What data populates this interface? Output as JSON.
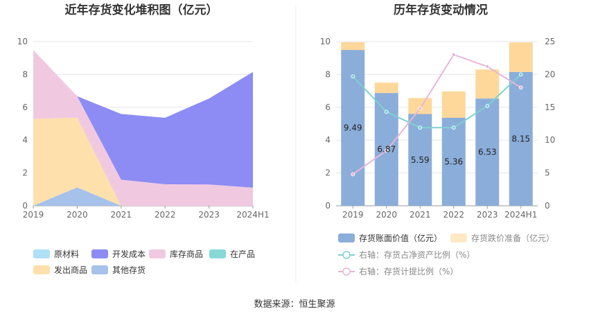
{
  "source": "数据来源：恒生聚源",
  "chart_data": [
    {
      "type": "area",
      "title": "近年存货变化堆积图（亿元）",
      "x": [
        "2019",
        "2020",
        "2021",
        "2022",
        "2023",
        "2024H1"
      ],
      "ylim": [
        0,
        10
      ],
      "yticks": [
        0,
        2,
        4,
        6,
        8,
        10
      ],
      "stacked": true,
      "grid": true,
      "legend_position": "bottom",
      "series": [
        {
          "name": "原材料",
          "color": "#aee0f8",
          "values": [
            0,
            0,
            0,
            0,
            0,
            0
          ]
        },
        {
          "name": "开发成本",
          "color": "#8c8cf4",
          "values": [
            0,
            0,
            4.0,
            4.05,
            5.23,
            7.05
          ]
        },
        {
          "name": "库存商品",
          "color": "#f0c9e0",
          "values": [
            4.2,
            1.3,
            1.59,
            1.31,
            1.3,
            1.1
          ]
        },
        {
          "name": "在产品",
          "color": "#88d8d8",
          "values": [
            0,
            0,
            0,
            0,
            0,
            0
          ]
        },
        {
          "name": "发出商品",
          "color": "#fde0ac",
          "values": [
            5.29,
            4.25,
            0,
            0,
            0,
            0
          ]
        },
        {
          "name": "其他存货",
          "color": "#a6c1ea",
          "values": [
            0,
            1.12,
            0,
            0,
            0,
            0
          ]
        }
      ],
      "stack_order": [
        "其他存货",
        "发出商品",
        "在产品",
        "库存商品",
        "开发成本",
        "原材料"
      ]
    },
    {
      "type": "bar",
      "title": "历年存货变动情况",
      "categories": [
        "2019",
        "2020",
        "2021",
        "2022",
        "2023",
        "2024H1"
      ],
      "ylim": [
        0,
        10
      ],
      "yticks": [
        0,
        2,
        4,
        6,
        8,
        10
      ],
      "y2lim": [
        0,
        25
      ],
      "y2ticks": [
        0,
        5,
        10,
        15,
        20,
        25
      ],
      "legend_position": "bottom",
      "bars": [
        {
          "name": "存货账面价值（亿元）",
          "color": "#8badd9",
          "values": [
            9.49,
            6.87,
            5.59,
            5.36,
            6.53,
            8.15
          ],
          "labels": [
            "9.49",
            "6.87",
            "5.59",
            "5.36",
            "6.53",
            "8.15"
          ]
        },
        {
          "name": "存货跌价准备（亿元）",
          "color": "#fdd89a",
          "values": [
            0.47,
            0.63,
            0.97,
            1.6,
            1.77,
            1.8
          ]
        }
      ],
      "lines": [
        {
          "name": "右轴：存货占净资产比例（%）",
          "color": "#7fd1d1",
          "axis": "right",
          "values": [
            19.7,
            14.3,
            11.9,
            11.9,
            15.2,
            20.0
          ]
        },
        {
          "name": "右轴：存货计提比例（%）",
          "color": "#e8b5d8",
          "axis": "right",
          "values": [
            4.8,
            8.4,
            14.8,
            23.0,
            21.2,
            18.0
          ]
        }
      ]
    }
  ]
}
